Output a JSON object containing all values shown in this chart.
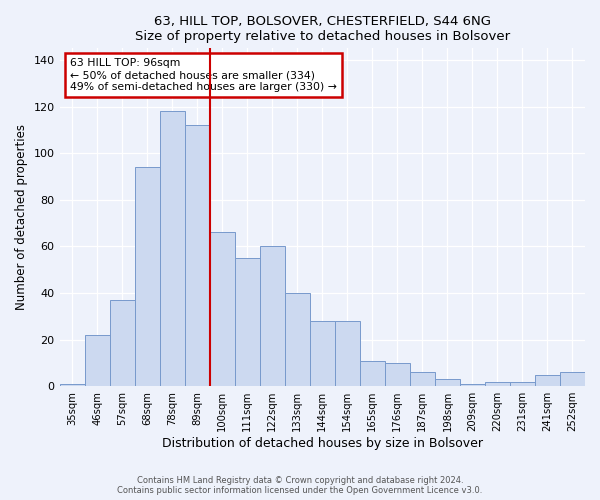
{
  "title1": "63, HILL TOP, BOLSOVER, CHESTERFIELD, S44 6NG",
  "title2": "Size of property relative to detached houses in Bolsover",
  "xlabel": "Distribution of detached houses by size in Bolsover",
  "ylabel": "Number of detached properties",
  "bin_labels": [
    "35sqm",
    "46sqm",
    "57sqm",
    "68sqm",
    "78sqm",
    "89sqm",
    "100sqm",
    "111sqm",
    "122sqm",
    "133sqm",
    "144sqm",
    "154sqm",
    "165sqm",
    "176sqm",
    "187sqm",
    "198sqm",
    "209sqm",
    "220sqm",
    "231sqm",
    "241sqm",
    "252sqm"
  ],
  "bar_values": [
    1,
    22,
    37,
    94,
    118,
    112,
    66,
    55,
    60,
    40,
    28,
    28,
    11,
    10,
    6,
    3,
    1,
    2,
    2,
    5,
    6
  ],
  "bar_color": "#ccd9f0",
  "bar_edge_color": "#7799cc",
  "vline_x": 5.5,
  "vline_color": "#cc0000",
  "annotation_title": "63 HILL TOP: 96sqm",
  "annotation_line1": "← 50% of detached houses are smaller (334)",
  "annotation_line2": "49% of semi-detached houses are larger (330) →",
  "annotation_box_color": "#ffffff",
  "annotation_box_edge": "#cc0000",
  "ylim": [
    0,
    145
  ],
  "yticks": [
    0,
    20,
    40,
    60,
    80,
    100,
    120,
    140
  ],
  "footer1": "Contains HM Land Registry data © Crown copyright and database right 2024.",
  "footer2": "Contains public sector information licensed under the Open Government Licence v3.0.",
  "bg_color": "#eef2fb"
}
